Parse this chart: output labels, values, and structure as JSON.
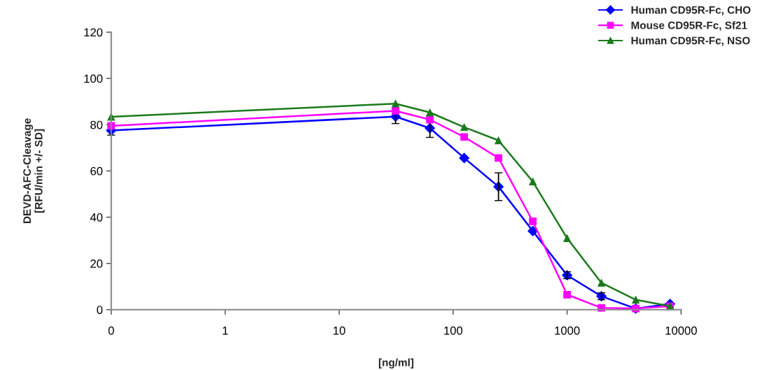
{
  "chart_data": {
    "type": "line",
    "xlabel": "[ng/ml]",
    "ylabel": "DEVD-AFC-Cleavage\n[RFU/min +/- SD]",
    "x": [
      0.1,
      31.25,
      62.5,
      125,
      250,
      500,
      1000,
      2000,
      4000,
      8000
    ],
    "series": [
      {
        "name": "Human CD95R-Fc, CHO",
        "color": "#0000ff",
        "marker": "diamond",
        "values": [
          77.5,
          83.5,
          78.5,
          65.6,
          53.2,
          34,
          14.9,
          5.8,
          0.5,
          2.5
        ],
        "errors": [
          2,
          3,
          4,
          null,
          6,
          null,
          1.5,
          1.5,
          null,
          null
        ]
      },
      {
        "name": "Mouse CD95R-Fc, Sf21",
        "color": "#ff00ff",
        "marker": "square",
        "values": [
          79.5,
          86,
          82.2,
          74.7,
          65.6,
          38.2,
          6.5,
          0.8,
          0.5,
          1.5
        ]
      },
      {
        "name": "Human CD95R-Fc, NSO",
        "color": "#1a7a1a",
        "marker": "triangle",
        "values": [
          83.4,
          89.1,
          85.3,
          78.9,
          73.2,
          55.4,
          30.9,
          11.6,
          4.3,
          1.5
        ]
      }
    ],
    "log": "x",
    "xlim": [
      0.1,
      10000
    ],
    "xticks": [
      {
        "value": 0.1,
        "label": "0"
      },
      1,
      10,
      100,
      1000,
      10000
    ],
    "ylim": [
      0,
      120
    ],
    "yticks": [
      0,
      20,
      40,
      60,
      80,
      100,
      120
    ],
    "grid": false,
    "legend": "top right",
    "line_style": "solid"
  }
}
